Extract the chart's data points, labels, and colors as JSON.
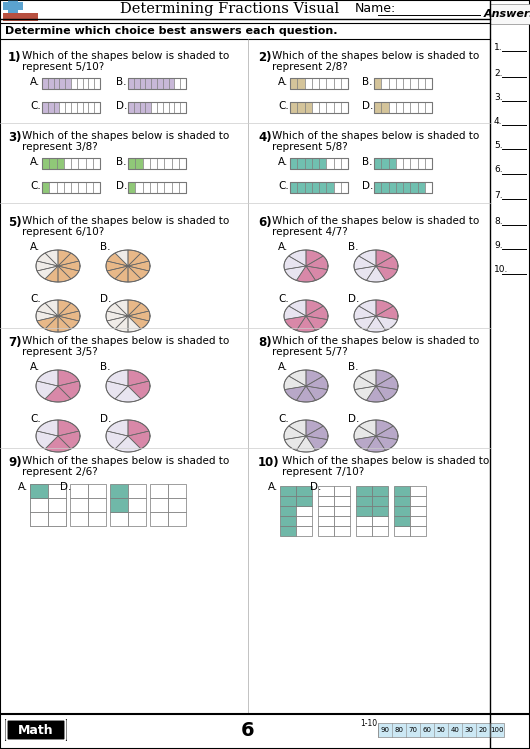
{
  "title": "Determining Fractions Visual",
  "name_label": "Name:",
  "instruction": "Determine which choice best answers each question.",
  "answers_label": "Answers",
  "page_number": "6",
  "score_values": [
    "90",
    "80",
    "70",
    "60",
    "50",
    "40",
    "30",
    "20",
    "100"
  ],
  "math_label": "Math",
  "bar_purple": "#c8b8d8",
  "bar_tan": "#d4c49a",
  "bar_green": "#90c878",
  "bar_teal": "#70c0b0",
  "pie_orange": "#e8b888",
  "pie_pink": "#d888a8",
  "pie_purple": "#b8a8c8",
  "pie_unshaded": "#f0ece8",
  "pie_unshaded2": "#e8e4f0",
  "pie_unshaded3": "#e8e8e8"
}
